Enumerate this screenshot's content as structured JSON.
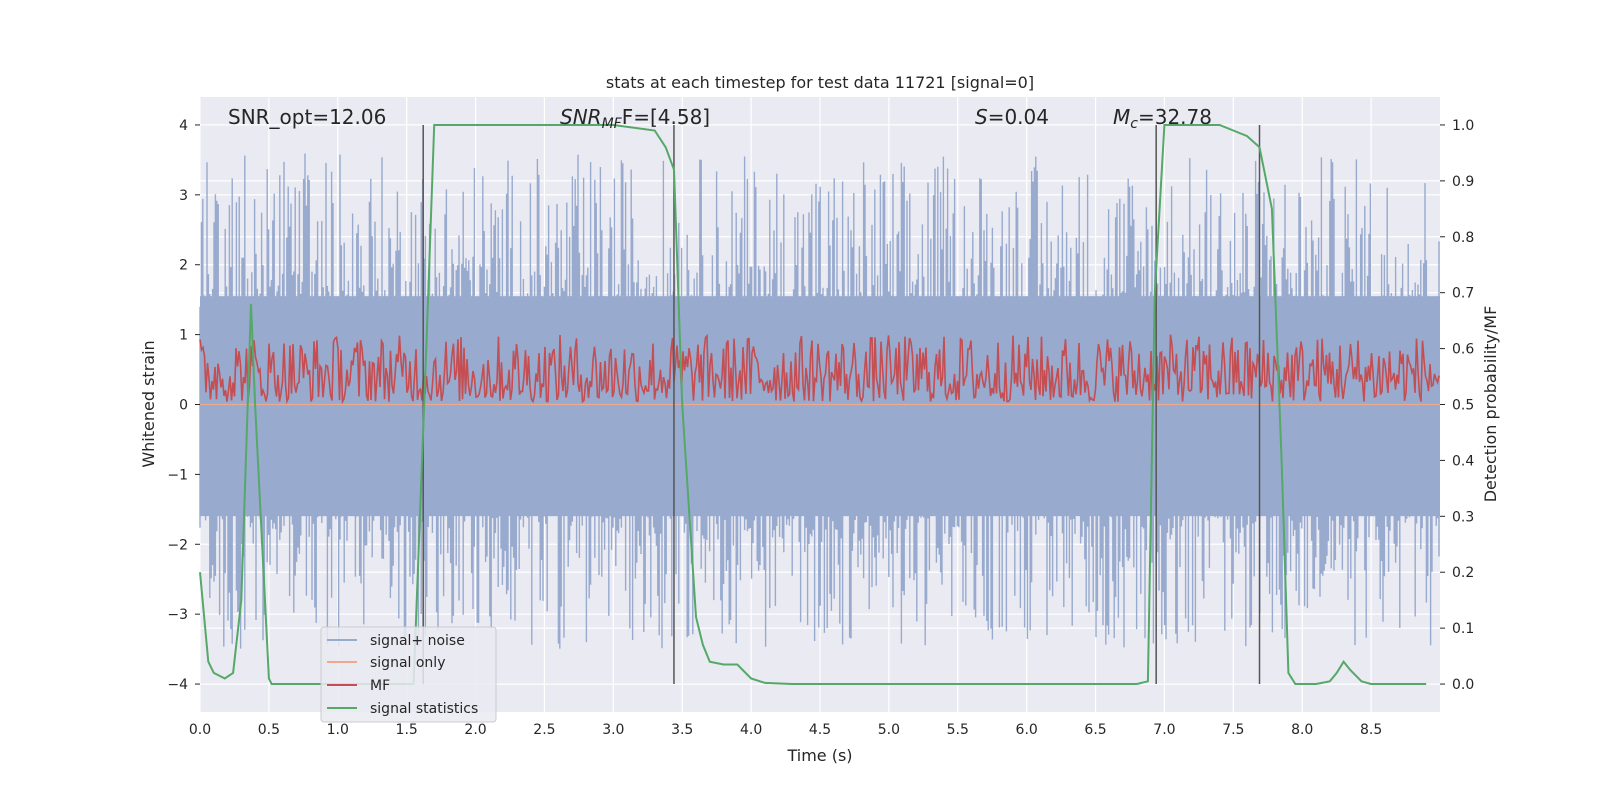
{
  "chart_data": {
    "type": "line",
    "title": "stats at each timestep for test data 11721 [signal=0]",
    "xlabel": "Time (s)",
    "ylabel_left": "Whitened strain",
    "ylabel_right": "Detection probability/MF",
    "xlim": [
      0.0,
      9.0
    ],
    "ylim_left": [
      -4.4,
      4.4
    ],
    "ylim_right": [
      -0.05,
      1.05
    ],
    "x_ticks": [
      "0.0",
      "0.5",
      "1.0",
      "1.5",
      "2.0",
      "2.5",
      "3.0",
      "3.5",
      "4.0",
      "4.5",
      "5.0",
      "5.5",
      "6.0",
      "6.5",
      "7.0",
      "7.5",
      "8.0",
      "8.5"
    ],
    "y_ticks_left": [
      "4",
      "3",
      "2",
      "1",
      "0",
      "−1",
      "−2",
      "−3",
      "−4"
    ],
    "y_ticks_right": [
      "1.0",
      "0.9",
      "0.8",
      "0.7",
      "0.6",
      "0.5",
      "0.4",
      "0.3",
      "0.2",
      "0.1",
      "0.0"
    ],
    "grid": true,
    "legend_position": "lower-left",
    "annotations": {
      "snr_opt": "SNR_opt=12.06",
      "snr_mf_main": "SNR",
      "snr_mf_sub": "MF",
      "snr_mf_rest": "F=[4.58]",
      "s_main": "S",
      "s_rest": "=0.04",
      "mc_main": "M",
      "mc_sub": "c",
      "mc_rest": "=32.78"
    },
    "vertical_lines_x": [
      1.62,
      3.44,
      6.94,
      7.69
    ],
    "series": [
      {
        "name": "signal+ noise",
        "color": "#98aace",
        "axis": "left",
        "description_range": [
          -3.5,
          3.6
        ]
      },
      {
        "name": "signal only",
        "color": "#eea98a",
        "axis": "left",
        "values_note": "flat at 0"
      },
      {
        "name": "MF",
        "color": "#c44e52",
        "axis": "right",
        "band": [
          0.5,
          0.62
        ]
      },
      {
        "name": "signal statistics",
        "color": "#55a868",
        "axis": "right",
        "x": [
          0.0,
          0.06,
          0.1,
          0.18,
          0.24,
          0.3,
          0.37,
          0.4,
          0.5,
          0.52,
          0.6,
          1.0,
          1.4,
          1.55,
          1.65,
          1.7,
          2.0,
          2.5,
          3.0,
          3.3,
          3.38,
          3.44,
          3.5,
          3.6,
          3.65,
          3.7,
          3.8,
          3.9,
          4.0,
          4.1,
          4.3,
          4.5,
          5.0,
          5.5,
          6.0,
          6.5,
          6.8,
          6.88,
          6.93,
          7.0,
          7.05,
          7.4,
          7.5,
          7.6,
          7.69,
          7.78,
          7.85,
          7.9,
          7.95,
          8.1,
          8.2,
          8.25,
          8.3,
          8.35,
          8.43,
          8.5,
          8.9
        ],
        "y": [
          0.2,
          0.04,
          0.02,
          0.01,
          0.02,
          0.15,
          0.68,
          0.5,
          0.01,
          0.0,
          0.0,
          0.0,
          0.0,
          0.0,
          0.65,
          1.0,
          1.0,
          1.0,
          1.0,
          0.99,
          0.96,
          0.92,
          0.5,
          0.12,
          0.07,
          0.04,
          0.035,
          0.035,
          0.01,
          0.002,
          0.0,
          0.0,
          0.0,
          0.0,
          0.0,
          0.0,
          0.0,
          0.005,
          0.7,
          1.0,
          1.0,
          1.0,
          0.99,
          0.98,
          0.96,
          0.85,
          0.4,
          0.02,
          0.0,
          0.0,
          0.005,
          0.02,
          0.04,
          0.025,
          0.005,
          0.0,
          0.0
        ]
      }
    ]
  }
}
